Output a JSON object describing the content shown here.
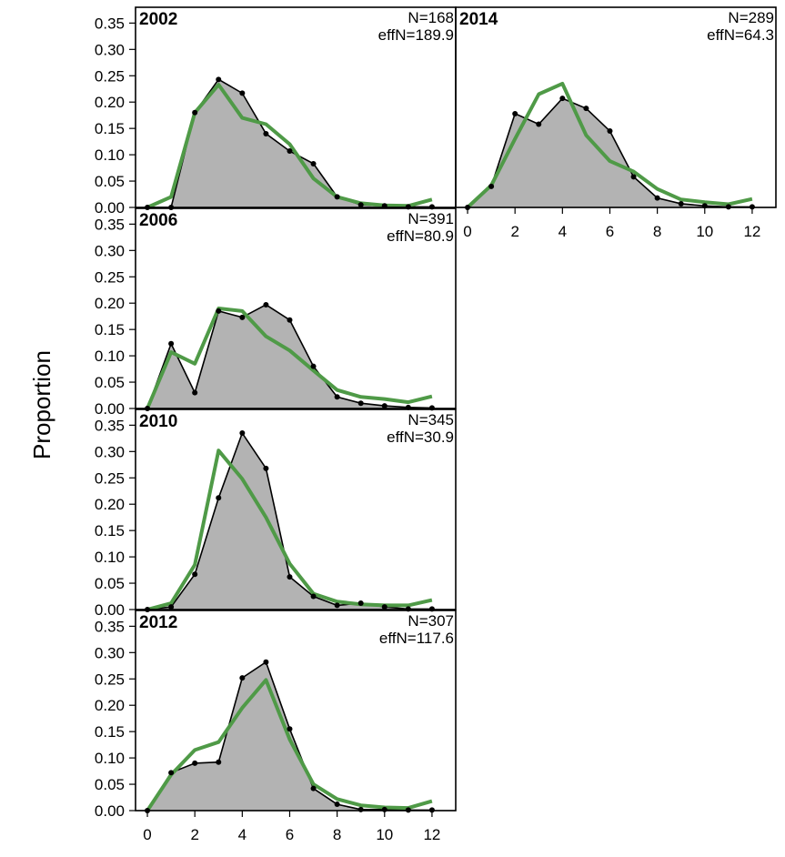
{
  "ylabel": "Proportion",
  "colors": {
    "observed_fill": "#b3b3b3",
    "observed_line": "#000000",
    "expected_line": "#4f9a47",
    "zero_line": "#bdbdbd",
    "frame": "#000000"
  },
  "chart_data": {
    "type": "area",
    "x": [
      0,
      1,
      2,
      3,
      4,
      5,
      6,
      7,
      8,
      9,
      10,
      11,
      12
    ],
    "xticks": [
      "0",
      "2",
      "4",
      "6",
      "8",
      "10",
      "12"
    ],
    "yticks": [
      "0.00",
      "0.05",
      "0.10",
      "0.15",
      "0.20",
      "0.25",
      "0.30",
      "0.35"
    ],
    "xlim": [
      -0.5,
      13
    ],
    "ylim": [
      0,
      0.38
    ],
    "ylabel": "Proportion",
    "panels": [
      {
        "year": "2002",
        "n_label": "N=168",
        "effn_label": "effN=189.9",
        "observed": [
          0,
          0,
          0.18,
          0.243,
          0.217,
          0.14,
          0.107,
          0.083,
          0.02,
          0.005,
          0.003,
          0.001,
          0.001
        ],
        "expected": [
          0,
          0.02,
          0.18,
          0.233,
          0.17,
          0.158,
          0.12,
          0.055,
          0.02,
          0.008,
          0.004,
          0.003,
          0.015
        ]
      },
      {
        "year": "2006",
        "n_label": "N=391",
        "effn_label": "effN=80.9",
        "observed": [
          0,
          0.123,
          0.03,
          0.185,
          0.173,
          0.197,
          0.168,
          0.08,
          0.022,
          0.01,
          0.005,
          0.002,
          0.001
        ],
        "expected": [
          0,
          0.107,
          0.085,
          0.19,
          0.185,
          0.137,
          0.11,
          0.072,
          0.035,
          0.022,
          0.018,
          0.012,
          0.023
        ]
      },
      {
        "year": "2010",
        "n_label": "N=345",
        "effn_label": "effN=30.9",
        "observed": [
          0,
          0.005,
          0.067,
          0.212,
          0.335,
          0.268,
          0.062,
          0.025,
          0.008,
          0.012,
          0.005,
          0.001,
          0.001
        ],
        "expected": [
          0,
          0.012,
          0.085,
          0.302,
          0.248,
          0.175,
          0.087,
          0.03,
          0.015,
          0.01,
          0.008,
          0.008,
          0.018
        ]
      },
      {
        "year": "2012",
        "n_label": "N=307",
        "effn_label": "effN=117.6",
        "observed": [
          0,
          0.072,
          0.09,
          0.092,
          0.252,
          0.282,
          0.155,
          0.042,
          0.012,
          0.002,
          0.002,
          0.001,
          0.001
        ],
        "expected": [
          0,
          0.068,
          0.115,
          0.13,
          0.195,
          0.248,
          0.135,
          0.05,
          0.022,
          0.01,
          0.006,
          0.005,
          0.018
        ]
      },
      {
        "year": "2014",
        "n_label": "N=289",
        "effn_label": "effN=64.3",
        "observed": [
          0,
          0.04,
          0.178,
          0.158,
          0.207,
          0.188,
          0.145,
          0.058,
          0.018,
          0.007,
          0.003,
          0.001,
          0.001
        ],
        "expected": [
          0,
          0.042,
          0.13,
          0.215,
          0.235,
          0.137,
          0.088,
          0.068,
          0.035,
          0.015,
          0.01,
          0.006,
          0.016
        ]
      }
    ]
  }
}
